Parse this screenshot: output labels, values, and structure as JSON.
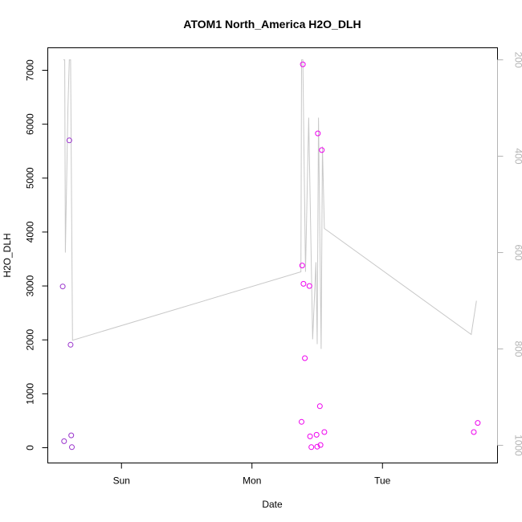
{
  "chart_data": {
    "type": "scatter",
    "title": "ATOM1 North_America H2O_DLH",
    "xlabel": "Date",
    "ylabel": "H2O_DLH",
    "x_axis": {
      "range_days": [
        0.0,
        3.2
      ],
      "ticks": [
        {
          "label": "Sun",
          "value": 0.5
        },
        {
          "label": "Mon",
          "value": 1.5
        },
        {
          "label": "Tue",
          "value": 2.5
        }
      ]
    },
    "y_left": {
      "range": [
        -250,
        7400
      ],
      "ticks": [
        0,
        1000,
        2000,
        3000,
        4000,
        5000,
        6000,
        7000
      ]
    },
    "y_right": {
      "label": "",
      "range_reversed": [
        1030,
        200
      ],
      "ticks": [
        200,
        400,
        600,
        800,
        1000
      ],
      "color": "#b4b4b4"
    },
    "series": [
      {
        "kind": "points",
        "colors": [
          "#9932cc",
          "#ee00ee"
        ],
        "points": [
          {
            "x": 0.05,
            "y": 2990
          },
          {
            "x": 0.06,
            "y": 120
          },
          {
            "x": 0.1,
            "y": 5700
          },
          {
            "x": 0.11,
            "y": 1910
          },
          {
            "x": 0.115,
            "y": 230
          },
          {
            "x": 0.12,
            "y": 10
          },
          {
            "x": 1.88,
            "y": 480
          },
          {
            "x": 1.885,
            "y": 3380
          },
          {
            "x": 1.89,
            "y": 7110
          },
          {
            "x": 1.895,
            "y": 3040
          },
          {
            "x": 1.905,
            "y": 1660
          },
          {
            "x": 1.94,
            "y": 3000
          },
          {
            "x": 1.945,
            "y": 210
          },
          {
            "x": 1.955,
            "y": 10
          },
          {
            "x": 1.995,
            "y": 240
          },
          {
            "x": 2.0,
            "y": 20
          },
          {
            "x": 2.005,
            "y": 5830
          },
          {
            "x": 2.02,
            "y": 770
          },
          {
            "x": 2.025,
            "y": 50
          },
          {
            "x": 2.035,
            "y": 5520
          },
          {
            "x": 2.055,
            "y": 290
          },
          {
            "x": 3.2,
            "y": 290
          },
          {
            "x": 3.23,
            "y": 460
          }
        ]
      },
      {
        "kind": "line",
        "axis": "right",
        "color": "#c8c8c8",
        "points": [
          {
            "x": 0.055,
            "y": 200
          },
          {
            "x": 0.065,
            "y": 200
          },
          {
            "x": 0.07,
            "y": 600
          },
          {
            "x": 0.09,
            "y": 300
          },
          {
            "x": 0.1,
            "y": 200
          },
          {
            "x": 0.11,
            "y": 200
          },
          {
            "x": 0.125,
            "y": 782
          },
          {
            "x": 1.875,
            "y": 640
          },
          {
            "x": 1.88,
            "y": 200
          },
          {
            "x": 1.89,
            "y": 200
          },
          {
            "x": 1.91,
            "y": 640
          },
          {
            "x": 1.935,
            "y": 320
          },
          {
            "x": 1.965,
            "y": 780
          },
          {
            "x": 1.99,
            "y": 620
          },
          {
            "x": 2.0,
            "y": 790
          },
          {
            "x": 2.01,
            "y": 320
          },
          {
            "x": 2.03,
            "y": 800
          },
          {
            "x": 2.04,
            "y": 380
          },
          {
            "x": 2.055,
            "y": 550
          },
          {
            "x": 3.18,
            "y": 770
          },
          {
            "x": 3.22,
            "y": 700
          }
        ]
      }
    ],
    "grid": false,
    "legend": "none"
  }
}
